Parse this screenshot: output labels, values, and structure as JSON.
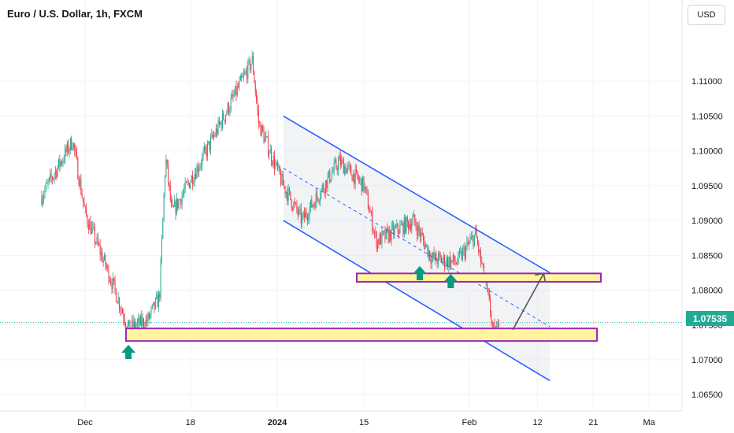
{
  "header": {
    "symbol_title": "Euro / U.S. Dollar, 1h, FXCM",
    "currency_button": "USD"
  },
  "price_scale": {
    "ticks": [
      "1.11000",
      "1.10500",
      "1.10000",
      "1.09500",
      "1.09000",
      "1.08500",
      "1.08000",
      "1.07500",
      "1.07000",
      "1.06500"
    ],
    "last_price": "1.07535"
  },
  "time_scale": {
    "ticks": [
      "Dec",
      "18",
      "2024",
      "15",
      "Feb",
      "12",
      "21",
      "Ma"
    ]
  },
  "colors": {
    "bull": "#22ab94",
    "bear": "#f23645",
    "channel": "#2962ff",
    "zone_fill": "#fff59d",
    "zone_border": "#9c27b0",
    "arrow": "#089981",
    "projection": "#555555"
  },
  "chart_data": {
    "type": "candlestick",
    "title": "Euro / U.S. Dollar, 1h, FXCM",
    "ylim": [
      1.0645,
      1.1145
    ],
    "price_path": [
      {
        "x": "Nov 24",
        "y": 1.0935
      },
      {
        "x": "Nov 29",
        "y": 1.1015
      },
      {
        "x": "Dec 1",
        "y": 1.091
      },
      {
        "x": "Dec 5",
        "y": 1.082
      },
      {
        "x": "Dec 7",
        "y": 1.077
      },
      {
        "x": "Dec 8",
        "y": 1.0745
      },
      {
        "x": "Dec 11",
        "y": 1.0755
      },
      {
        "x": "Dec 13",
        "y": 1.079
      },
      {
        "x": "Dec 14",
        "y": 1.099
      },
      {
        "x": "Dec 15",
        "y": 1.091
      },
      {
        "x": "Dec 20",
        "y": 1.099
      },
      {
        "x": "Dec 28",
        "y": 1.113
      },
      {
        "x": "Dec 29",
        "y": 1.104
      },
      {
        "x": "Jan 2",
        "y": 1.095
      },
      {
        "x": "Jan 5",
        "y": 1.09
      },
      {
        "x": "Jan 11",
        "y": 1.0985
      },
      {
        "x": "Jan 15",
        "y": 1.095
      },
      {
        "x": "Jan 17",
        "y": 1.087
      },
      {
        "x": "Jan 23",
        "y": 1.09
      },
      {
        "x": "Jan 26",
        "y": 1.0845
      },
      {
        "x": "Jan 30",
        "y": 1.084
      },
      {
        "x": "Feb 2",
        "y": 1.088
      },
      {
        "x": "Feb 4",
        "y": 1.079
      },
      {
        "x": "Feb 5",
        "y": 1.0735
      },
      {
        "x": "Feb 6",
        "y": 1.0753
      }
    ],
    "last_price": 1.07535,
    "support_zones": [
      {
        "from": 1.0727,
        "to": 1.0745
      },
      {
        "from": 1.0812,
        "to": 1.0824
      }
    ],
    "descending_channel": {
      "upper": [
        {
          "x": "Jan 2",
          "y": 1.105
        },
        {
          "x": "Feb 14",
          "y": 1.0825
        }
      ],
      "lower": [
        {
          "x": "Jan 2",
          "y": 1.09
        },
        {
          "x": "Feb 14",
          "y": 1.067
        }
      ]
    },
    "markers": [
      "Dec 8",
      "Jan 24",
      "Jan 29"
    ],
    "projection": [
      {
        "x": "Feb 8",
        "y": 1.0743
      },
      {
        "x": "Feb 13",
        "y": 1.0824
      }
    ]
  }
}
